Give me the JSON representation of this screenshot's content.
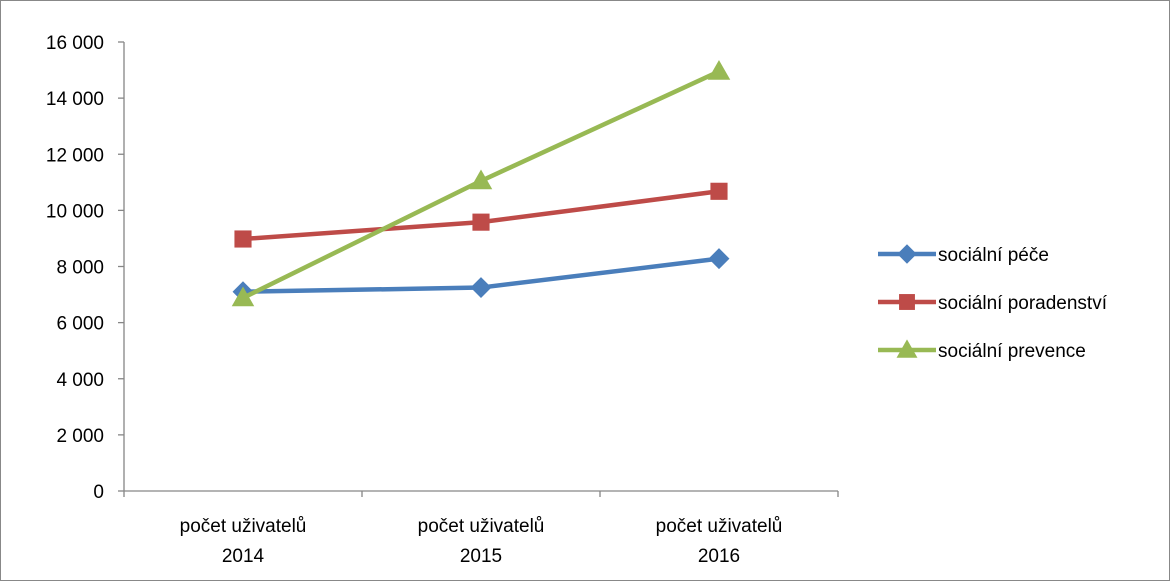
{
  "chart_data": {
    "type": "line",
    "title": "",
    "xlabel": "",
    "ylabel": "",
    "categories": [
      [
        "počet uživatelů",
        "2014"
      ],
      [
        "počet uživatelů",
        "2015"
      ],
      [
        "počet uživatelů",
        "2016"
      ]
    ],
    "y_ticks": [
      "0",
      "2 000",
      "4 000",
      "6 000",
      "8 000",
      "10 000",
      "12 000",
      "14 000",
      "16 000"
    ],
    "ylim": [
      0,
      16000
    ],
    "grid": false,
    "legend_position": "right",
    "series": [
      {
        "name": "sociální péče",
        "values": [
          7100,
          7250,
          8280
        ],
        "color": "#4a7ebb",
        "marker": "diamond"
      },
      {
        "name": "sociální poradenství",
        "values": [
          8980,
          9580,
          10680
        ],
        "color": "#be4b48",
        "marker": "square"
      },
      {
        "name": "sociální prevence",
        "values": [
          6880,
          11050,
          14950
        ],
        "color": "#98b954",
        "marker": "triangle"
      }
    ]
  }
}
